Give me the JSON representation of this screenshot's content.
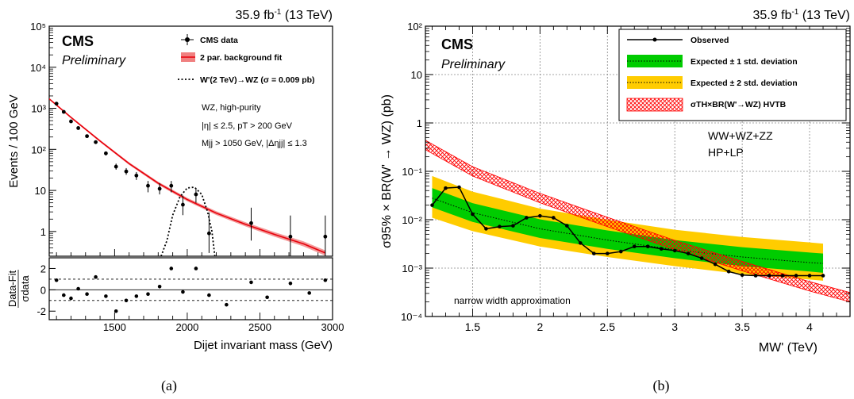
{
  "panel_labels": [
    "(a)",
    "(b)"
  ],
  "chart_data": [
    {
      "type": "scatter",
      "panel": "(a)",
      "lumi_label": "35.9 fb⁻¹ (13 TeV)",
      "cms_label": "CMS",
      "preliminary_label": "Preliminary",
      "xlabel": "Dijet invariant mass (GeV)",
      "ylabel": "Events / 100 GeV",
      "ratio_ylabel": "Data-Fit",
      "ratio_ylabel_den": "σdata",
      "xlim": [
        1050,
        3000
      ],
      "ylim": [
        0.25,
        100000
      ],
      "yscale": "log",
      "ratio_ylim": [
        -2.8,
        3.0
      ],
      "xticks": [
        1500,
        2000,
        2500,
        3000
      ],
      "yticks": [
        {
          "v": 1,
          "label": "1"
        },
        {
          "v": 10,
          "label": "10"
        },
        {
          "v": 100,
          "label": "10²"
        },
        {
          "v": 1000,
          "label": "10³"
        },
        {
          "v": 10000,
          "label": "10⁴"
        },
        {
          "v": 100000,
          "label": "10⁵"
        }
      ],
      "ratio_yticks": [
        -2,
        0,
        2
      ],
      "legend": [
        {
          "label": "CMS data",
          "style": "marker"
        },
        {
          "label": "2 par. background fit",
          "style": "band-red"
        },
        {
          "label": "W'(2 TeV)→WZ (σ = 0.009 pb)",
          "style": "dotted"
        }
      ],
      "annotations": [
        "WZ, high-purity",
        "|η| ≤ 2.5, pT > 200 GeV",
        "Mjj > 1050 GeV, |Δηjj| ≤ 1.3"
      ],
      "data": [
        {
          "x": 1100,
          "y": 1300,
          "elo": 36,
          "ehi": 36
        },
        {
          "x": 1150,
          "y": 820,
          "elo": 29,
          "ehi": 29
        },
        {
          "x": 1200,
          "y": 480,
          "elo": 22,
          "ehi": 22
        },
        {
          "x": 1250,
          "y": 330,
          "elo": 18,
          "ehi": 18
        },
        {
          "x": 1310,
          "y": 210,
          "elo": 15,
          "ehi": 15
        },
        {
          "x": 1370,
          "y": 150,
          "elo": 12,
          "ehi": 12
        },
        {
          "x": 1440,
          "y": 80,
          "elo": 9,
          "ehi": 9
        },
        {
          "x": 1510,
          "y": 38,
          "elo": 6,
          "ehi": 7
        },
        {
          "x": 1580,
          "y": 29,
          "elo": 5,
          "ehi": 6
        },
        {
          "x": 1650,
          "y": 23,
          "elo": 5,
          "ehi": 5
        },
        {
          "x": 1730,
          "y": 13,
          "elo": 4,
          "ehi": 4
        },
        {
          "x": 1810,
          "y": 11,
          "elo": 3,
          "ehi": 4
        },
        {
          "x": 1890,
          "y": 13,
          "elo": 4,
          "ehi": 4
        },
        {
          "x": 1970,
          "y": 4.5,
          "elo": 2,
          "ehi": 3
        },
        {
          "x": 2060,
          "y": 8,
          "elo": 3,
          "ehi": 3
        },
        {
          "x": 2150,
          "y": 0.9,
          "elo": 0.6,
          "ehi": 2
        },
        {
          "x": 2440,
          "y": 1.6,
          "elo": 1.0,
          "ehi": 2.2
        },
        {
          "x": 2710,
          "y": 0.75,
          "elo": 0.5,
          "ehi": 1.7
        },
        {
          "x": 2950,
          "y": 0.75,
          "elo": 0.5,
          "ehi": 1.7
        }
      ],
      "ratio": [
        {
          "x": 1100,
          "y": 0.9
        },
        {
          "x": 1150,
          "y": -0.5
        },
        {
          "x": 1200,
          "y": -0.8
        },
        {
          "x": 1250,
          "y": 0.1
        },
        {
          "x": 1310,
          "y": -0.4
        },
        {
          "x": 1370,
          "y": 1.2
        },
        {
          "x": 1440,
          "y": -0.6
        },
        {
          "x": 1510,
          "y": -2.0
        },
        {
          "x": 1580,
          "y": -1.0
        },
        {
          "x": 1650,
          "y": -0.6
        },
        {
          "x": 1730,
          "y": -0.4
        },
        {
          "x": 1810,
          "y": 0.3
        },
        {
          "x": 1890,
          "y": 2.0
        },
        {
          "x": 1970,
          "y": -0.2
        },
        {
          "x": 2060,
          "y": 2.0
        },
        {
          "x": 2150,
          "y": -0.5
        },
        {
          "x": 2270,
          "y": -1.4
        },
        {
          "x": 2440,
          "y": 0.7
        },
        {
          "x": 2550,
          "y": -0.7
        },
        {
          "x": 2710,
          "y": 0.6
        },
        {
          "x": 2840,
          "y": -0.3
        },
        {
          "x": 2950,
          "y": 0.9
        }
      ],
      "fit": [
        {
          "x": 1050,
          "y": 1700
        },
        {
          "x": 1200,
          "y": 600
        },
        {
          "x": 1400,
          "y": 160
        },
        {
          "x": 1600,
          "y": 45
        },
        {
          "x": 1800,
          "y": 15
        },
        {
          "x": 2000,
          "y": 6
        },
        {
          "x": 2200,
          "y": 2.8
        },
        {
          "x": 2400,
          "y": 1.5
        },
        {
          "x": 2600,
          "y": 0.85
        },
        {
          "x": 2800,
          "y": 0.5
        },
        {
          "x": 2950,
          "y": 0.3
        }
      ],
      "signal": [
        {
          "x": 1820,
          "y": 0.25
        },
        {
          "x": 1860,
          "y": 0.6
        },
        {
          "x": 1900,
          "y": 2.5
        },
        {
          "x": 1950,
          "y": 7
        },
        {
          "x": 2000,
          "y": 11.5
        },
        {
          "x": 2050,
          "y": 12
        },
        {
          "x": 2100,
          "y": 8
        },
        {
          "x": 2140,
          "y": 3
        },
        {
          "x": 2170,
          "y": 1
        },
        {
          "x": 2190,
          "y": 0.25
        }
      ]
    },
    {
      "type": "line",
      "panel": "(b)",
      "lumi_label": "35.9 fb⁻¹ (13 TeV)",
      "cms_label": "CMS",
      "preliminary_label": "Preliminary",
      "xlabel": "MW' (TeV)",
      "ylabel": "σ95% × BR(W' → WZ) (pb)",
      "xlim": [
        1.15,
        4.3
      ],
      "ylim": [
        0.0001,
        100
      ],
      "yscale": "log",
      "grid": true,
      "xticks": [
        {
          "v": 1.5,
          "label": "1.5"
        },
        {
          "v": 2,
          "label": "2"
        },
        {
          "v": 2.5,
          "label": "2.5"
        },
        {
          "v": 3,
          "label": "3"
        },
        {
          "v": 3.5,
          "label": "3.5"
        },
        {
          "v": 4,
          "label": "4"
        }
      ],
      "yticks": [
        {
          "v": 0.0001,
          "label": "10⁻⁴"
        },
        {
          "v": 0.001,
          "label": "10⁻³"
        },
        {
          "v": 0.01,
          "label": "10⁻²"
        },
        {
          "v": 0.1,
          "label": "10⁻¹"
        },
        {
          "v": 1,
          "label": "1"
        },
        {
          "v": 10,
          "label": "10"
        },
        {
          "v": 100,
          "label": "10²"
        }
      ],
      "legend": [
        {
          "label": "Observed",
          "style": "marker-line"
        },
        {
          "label": "Expected ± 1 std. deviation",
          "style": "band-green"
        },
        {
          "label": "Expected ± 2 std. deviation",
          "style": "band-yellow"
        },
        {
          "label": "σTH×BR(W'→WZ) HVTB",
          "style": "hatch-red"
        }
      ],
      "annotations": [
        "WW+WZ+ZZ",
        "HP+LP",
        "narrow width approximation"
      ],
      "colors": {
        "band1": "#00cc00",
        "band2": "#ffcc00",
        "theory": "#ff0000"
      },
      "expected": [
        {
          "x": 1.2,
          "y": 0.028
        },
        {
          "x": 1.5,
          "y": 0.014
        },
        {
          "x": 2.0,
          "y": 0.0065
        },
        {
          "x": 2.5,
          "y": 0.0038
        },
        {
          "x": 3.0,
          "y": 0.0024
        },
        {
          "x": 3.5,
          "y": 0.0017
        },
        {
          "x": 4.0,
          "y": 0.0013
        },
        {
          "x": 4.1,
          "y": 0.00125
        }
      ],
      "band1": [
        {
          "x": 1.2,
          "lo": 0.018,
          "hi": 0.045
        },
        {
          "x": 1.5,
          "lo": 0.009,
          "hi": 0.022
        },
        {
          "x": 2.0,
          "lo": 0.0042,
          "hi": 0.0102
        },
        {
          "x": 2.5,
          "lo": 0.0025,
          "hi": 0.006
        },
        {
          "x": 3.0,
          "lo": 0.0016,
          "hi": 0.0038
        },
        {
          "x": 3.5,
          "lo": 0.0011,
          "hi": 0.0027
        },
        {
          "x": 4.0,
          "lo": 0.00085,
          "hi": 0.0021
        },
        {
          "x": 4.1,
          "lo": 0.0008,
          "hi": 0.002
        }
      ],
      "band2": [
        {
          "x": 1.2,
          "lo": 0.011,
          "hi": 0.08
        },
        {
          "x": 1.5,
          "lo": 0.0058,
          "hi": 0.038
        },
        {
          "x": 2.0,
          "lo": 0.0028,
          "hi": 0.017
        },
        {
          "x": 2.5,
          "lo": 0.0017,
          "hi": 0.01
        },
        {
          "x": 3.0,
          "lo": 0.0011,
          "hi": 0.0062
        },
        {
          "x": 3.5,
          "lo": 0.00075,
          "hi": 0.0044
        },
        {
          "x": 4.0,
          "lo": 0.00058,
          "hi": 0.0034
        },
        {
          "x": 4.1,
          "lo": 0.00055,
          "hi": 0.0032
        }
      ],
      "observed": [
        {
          "x": 1.2,
          "y": 0.02
        },
        {
          "x": 1.3,
          "y": 0.045
        },
        {
          "x": 1.4,
          "y": 0.047
        },
        {
          "x": 1.5,
          "y": 0.013
        },
        {
          "x": 1.6,
          "y": 0.0065
        },
        {
          "x": 1.7,
          "y": 0.0072
        },
        {
          "x": 1.8,
          "y": 0.0075
        },
        {
          "x": 1.9,
          "y": 0.011
        },
        {
          "x": 2.0,
          "y": 0.012
        },
        {
          "x": 2.1,
          "y": 0.011
        },
        {
          "x": 2.2,
          "y": 0.0075
        },
        {
          "x": 2.3,
          "y": 0.0033
        },
        {
          "x": 2.4,
          "y": 0.002
        },
        {
          "x": 2.5,
          "y": 0.002
        },
        {
          "x": 2.6,
          "y": 0.0022
        },
        {
          "x": 2.7,
          "y": 0.0028
        },
        {
          "x": 2.8,
          "y": 0.0028
        },
        {
          "x": 2.9,
          "y": 0.0025
        },
        {
          "x": 3.0,
          "y": 0.0023
        },
        {
          "x": 3.1,
          "y": 0.002
        },
        {
          "x": 3.2,
          "y": 0.0016
        },
        {
          "x": 3.3,
          "y": 0.0012
        },
        {
          "x": 3.4,
          "y": 0.00085
        },
        {
          "x": 3.5,
          "y": 0.00072
        },
        {
          "x": 3.6,
          "y": 0.0007
        },
        {
          "x": 3.7,
          "y": 0.0007
        },
        {
          "x": 3.8,
          "y": 0.0007
        },
        {
          "x": 3.9,
          "y": 0.0007
        },
        {
          "x": 4.0,
          "y": 0.0007
        },
        {
          "x": 4.1,
          "y": 0.0007
        }
      ],
      "theory": [
        {
          "x": 1.15,
          "y": 0.35
        },
        {
          "x": 1.5,
          "y": 0.1
        },
        {
          "x": 2.0,
          "y": 0.028
        },
        {
          "x": 2.5,
          "y": 0.009
        },
        {
          "x": 3.0,
          "y": 0.003
        },
        {
          "x": 3.5,
          "y": 0.0011
        },
        {
          "x": 4.0,
          "y": 0.00042
        },
        {
          "x": 4.3,
          "y": 0.00025
        }
      ]
    }
  ]
}
